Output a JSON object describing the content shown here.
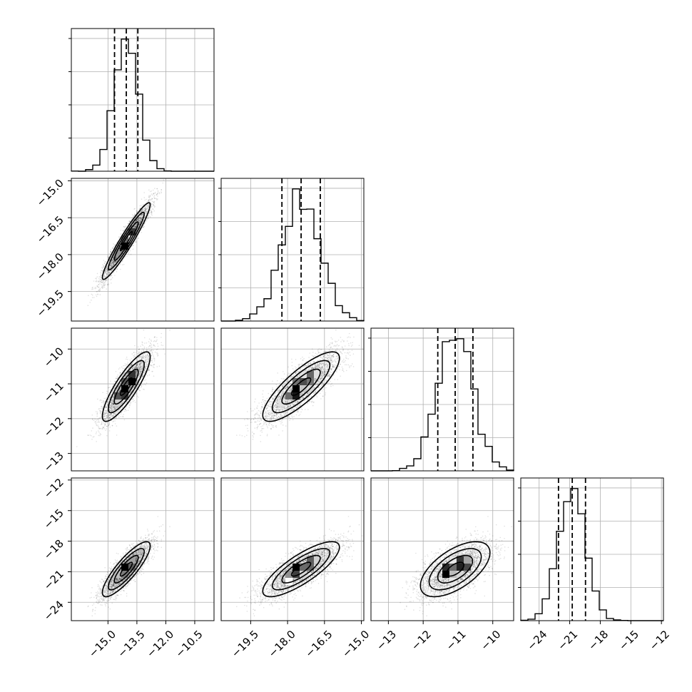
{
  "chart_data": {
    "type": "corner",
    "parameters": [
      {
        "range": [
          -16.9,
          -9.5
        ],
        "ticks": [
          -15.0,
          -13.5,
          -12.0,
          -10.5
        ],
        "tick_labels": [
          "−15.0",
          "−13.5",
          "−12.0",
          "−10.5"
        ],
        "mean": -14.05,
        "std": 0.62,
        "quantiles": [
          -14.66,
          -14.05,
          -13.45
        ]
      },
      {
        "range": [
          -20.7,
          -14.9
        ],
        "ticks": [
          -19.5,
          -18.0,
          -16.5,
          -15.0
        ],
        "tick_labels": [
          "−19.5",
          "−18.0",
          "−16.5",
          "−15.0"
        ],
        "mean": -17.45,
        "std": 0.78,
        "quantiles": [
          -18.23,
          -17.45,
          -16.67
        ]
      },
      {
        "range": [
          -13.5,
          -9.4
        ],
        "ticks": [
          -13,
          -12,
          -11,
          -10
        ],
        "tick_labels": [
          "−13",
          "−12",
          "−11",
          "−10"
        ],
        "mean": -11.08,
        "std": 0.5,
        "quantiles": [
          -11.58,
          -11.08,
          -10.57
        ]
      },
      {
        "range": [
          -25.8,
          -11.8
        ],
        "ticks": [
          -24,
          -21,
          -18,
          -15,
          -12
        ],
        "tick_labels": [
          "−24",
          "−21",
          "−18",
          "−15",
          "−12"
        ],
        "mean": -20.75,
        "std": 1.35,
        "quantiles": [
          -22.1,
          -20.75,
          -19.45
        ]
      }
    ],
    "correlation": [
      [
        1.0,
        0.95,
        0.85,
        0.85
      ],
      [
        0.95,
        1.0,
        0.82,
        0.8
      ],
      [
        0.85,
        0.82,
        1.0,
        0.6
      ],
      [
        0.85,
        0.8,
        0.6,
        1.0
      ]
    ],
    "quantile_levels": [
      0.16,
      0.5,
      0.84
    ],
    "contour_levels_sigma": [
      0.5,
      1.0,
      1.5,
      2.0
    ],
    "histogram_bins": 20,
    "grid": true,
    "colors": {
      "marks": "#000000",
      "grid": "#b0b0b0",
      "background": "#ffffff"
    }
  }
}
